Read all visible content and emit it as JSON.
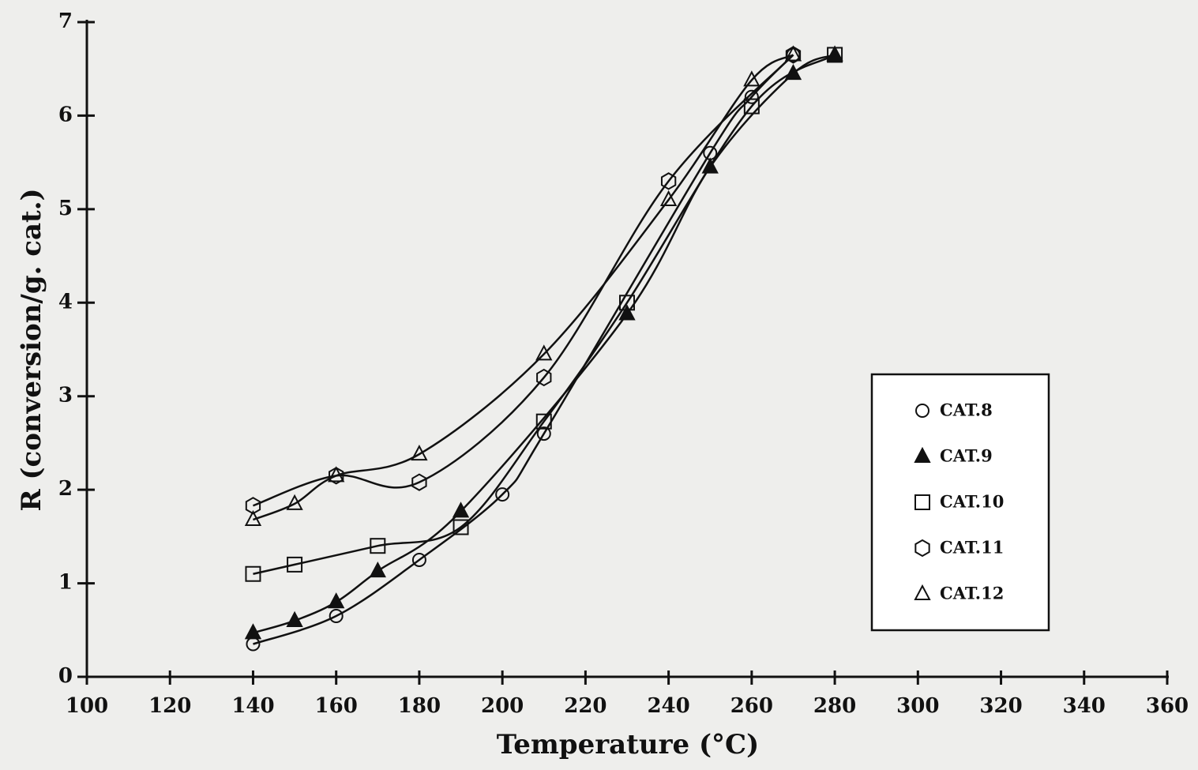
{
  "chart_data": {
    "type": "scatter",
    "x_label": "Temperature (°C)",
    "y_label": "R (conversion/g. cat.)",
    "xlim": [
      100,
      360
    ],
    "xticks": [
      100,
      120,
      140,
      160,
      180,
      200,
      220,
      240,
      260,
      280,
      300,
      320,
      340,
      360
    ],
    "ylim": [
      0,
      7
    ],
    "yticks": [
      0,
      1,
      2,
      3,
      4,
      5,
      6,
      7
    ],
    "legend": "right",
    "series": [
      {
        "name": "CAT.8",
        "marker": "circle",
        "filled": false,
        "color": "#111111",
        "x": [
          140,
          160,
          180,
          200,
          210,
          250,
          260,
          270
        ],
        "values": [
          0.35,
          0.65,
          1.25,
          1.95,
          2.6,
          5.6,
          6.2,
          6.65
        ]
      },
      {
        "name": "CAT.9",
        "marker": "triangle",
        "filled": true,
        "color": "#111111",
        "x": [
          140,
          150,
          160,
          170,
          190,
          230,
          250,
          270,
          280
        ],
        "values": [
          0.47,
          0.6,
          0.8,
          1.13,
          1.77,
          3.88,
          5.45,
          6.45,
          6.65
        ]
      },
      {
        "name": "CAT.10",
        "marker": "square",
        "filled": false,
        "color": "#111111",
        "x": [
          140,
          150,
          170,
          190,
          210,
          230,
          260,
          280
        ],
        "values": [
          1.1,
          1.2,
          1.4,
          1.6,
          2.73,
          4.0,
          6.1,
          6.65
        ]
      },
      {
        "name": "CAT.11",
        "marker": "hexagon",
        "filled": false,
        "color": "#111111",
        "x": [
          140,
          160,
          180,
          210,
          240,
          270
        ],
        "values": [
          1.83,
          2.15,
          2.08,
          3.2,
          5.3,
          6.65
        ]
      },
      {
        "name": "CAT.12",
        "marker": "triangle",
        "filled": false,
        "color": "#111111",
        "x": [
          140,
          150,
          160,
          180,
          210,
          240,
          260,
          270
        ],
        "values": [
          1.68,
          1.85,
          2.15,
          2.38,
          3.45,
          5.1,
          6.38,
          6.65
        ]
      }
    ]
  }
}
